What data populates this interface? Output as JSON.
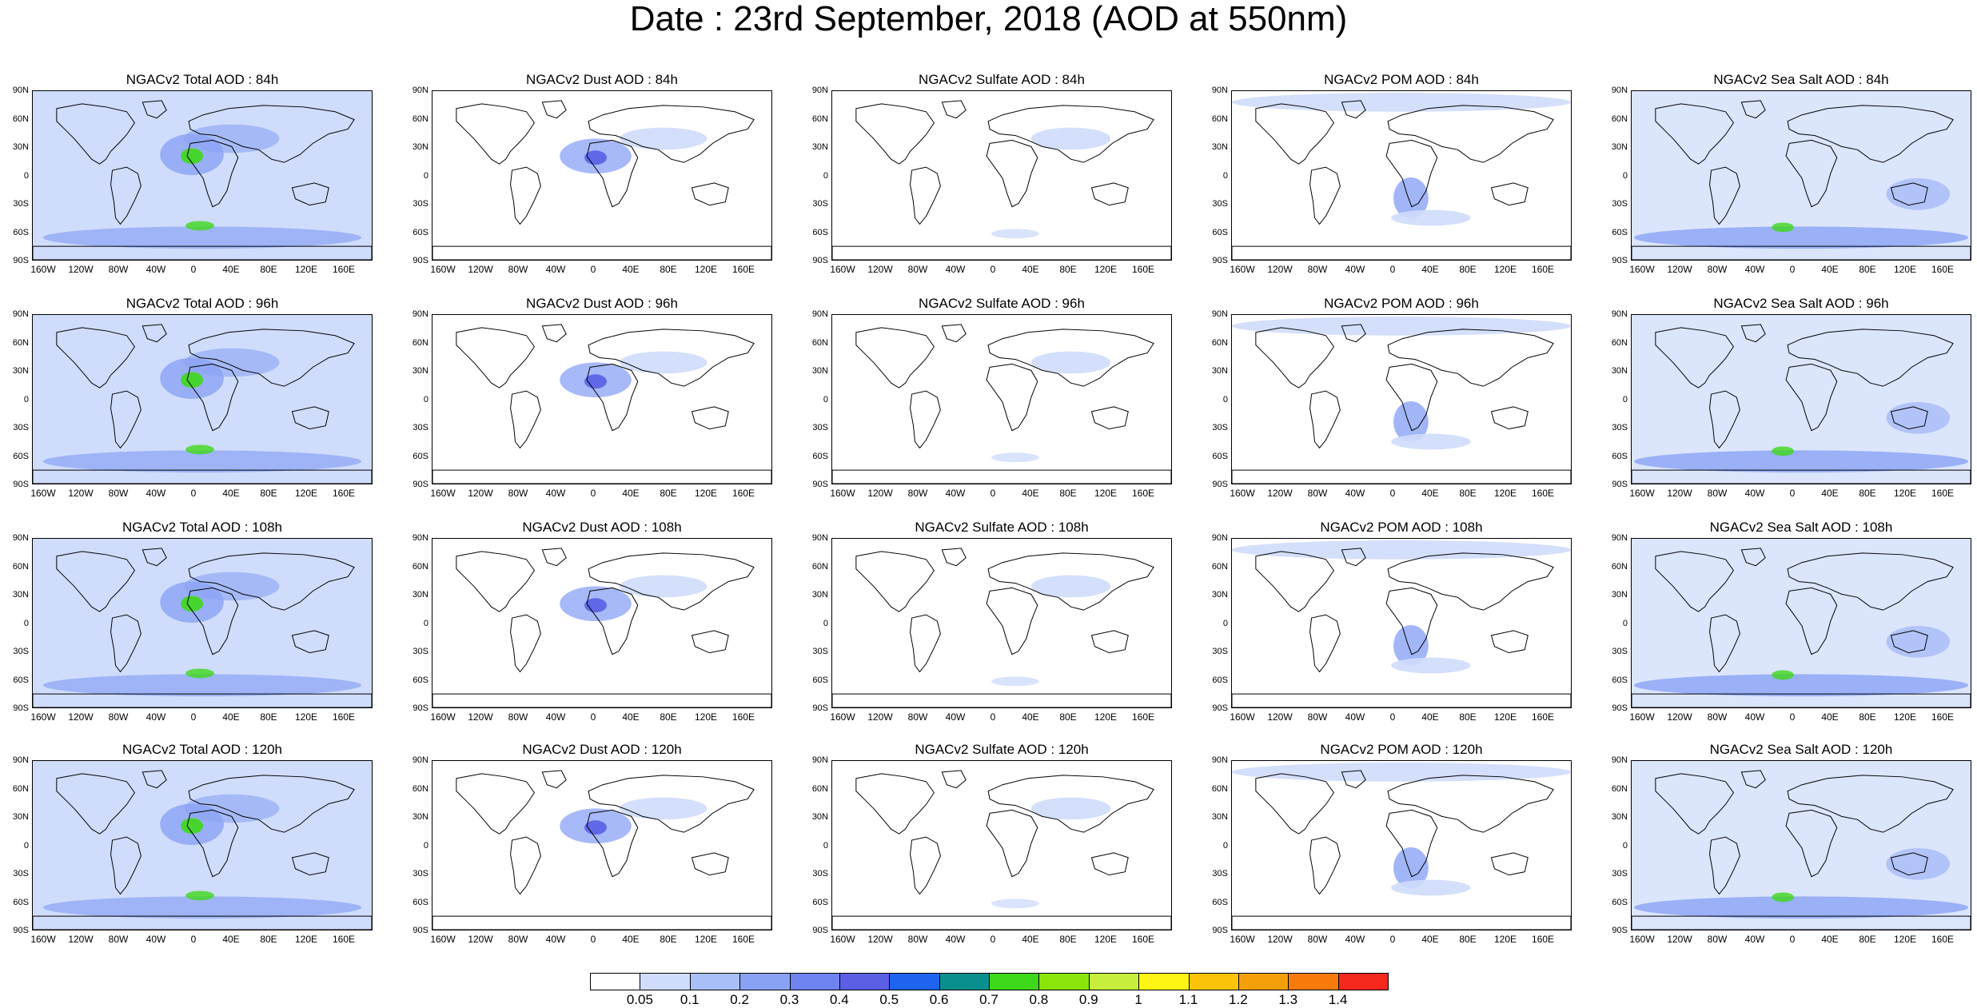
{
  "title": "Date : 23rd September, 2018 (AOD at 550nm)",
  "axes": {
    "lat_labels": [
      "90N",
      "60N",
      "30N",
      "0",
      "30S",
      "60S",
      "90S"
    ],
    "lon_labels": [
      "160W",
      "120W",
      "80W",
      "40W",
      "0",
      "40E",
      "80E",
      "120E",
      "160E"
    ]
  },
  "panels": [
    [
      "NGACv2 Total AOD : 84h",
      "NGACv2 Dust AOD : 84h",
      "NGACv2 Sulfate AOD : 84h",
      "NGACv2 POM AOD : 84h",
      "NGACv2 Sea Salt AOD : 84h"
    ],
    [
      "NGACv2 Total AOD : 96h",
      "NGACv2 Dust AOD : 96h",
      "NGACv2 Sulfate AOD : 96h",
      "NGACv2 POM AOD : 96h",
      "NGACv2 Sea Salt AOD : 96h"
    ],
    [
      "NGACv2 Total AOD : 108h",
      "NGACv2 Dust AOD : 108h",
      "NGACv2 Sulfate AOD : 108h",
      "NGACv2 POM AOD : 108h",
      "NGACv2 Sea Salt AOD : 108h"
    ],
    [
      "NGACv2 Total AOD : 120h",
      "NGACv2 Dust AOD : 120h",
      "NGACv2 Sulfate AOD : 120h",
      "NGACv2 POM AOD : 120h",
      "NGACv2 Sea Salt  AOD : 120h"
    ]
  ],
  "colorbar": {
    "labels": [
      "0.05",
      "0.1",
      "0.2",
      "0.3",
      "0.4",
      "0.5",
      "0.6",
      "0.7",
      "0.8",
      "0.9",
      "1",
      "1.1",
      "1.2",
      "1.3",
      "1.4"
    ],
    "colors": [
      "#ffffff",
      "#cfdcfb",
      "#a9bff8",
      "#8aa2f5",
      "#6e82f0",
      "#5a5fe6",
      "#1e64ee",
      "#08908f",
      "#3ed81a",
      "#8ae60a",
      "#c6ee3a",
      "#fff514",
      "#fbc40a",
      "#f5a00a",
      "#f77a0a",
      "#f5281e"
    ]
  },
  "colors": {
    "land_outline": "#000000",
    "aod_low": "#cfdcfb",
    "aod_mid": "#8aa2f5",
    "aod_high": "#5a5fe6",
    "aod_peak": "#3ed81a"
  }
}
